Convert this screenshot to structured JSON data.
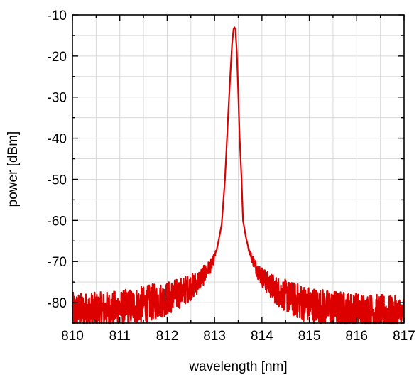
{
  "chart_data": {
    "type": "line",
    "xlabel": "wavelength [nm]",
    "ylabel": "power [dBm]",
    "xlim": [
      810,
      817
    ],
    "ylim": [
      -85,
      -10
    ],
    "xticks": [
      810,
      811,
      812,
      813,
      814,
      815,
      816,
      817
    ],
    "yticks": [
      -10,
      -20,
      -30,
      -40,
      -50,
      -60,
      -70,
      -80
    ],
    "xtick_labels": [
      "810",
      "811",
      "812",
      "813",
      "814",
      "815",
      "816",
      "817"
    ],
    "ytick_labels": [
      "-10",
      "-20",
      "-30",
      "-40",
      "-50",
      "-60",
      "-70",
      "-80"
    ],
    "grid": true,
    "series": [
      {
        "color": "#dd0000",
        "noisy": true,
        "x": [
          810.0,
          810.5,
          811.0,
          811.5,
          812.0,
          812.3,
          812.6,
          812.8,
          812.95,
          813.05,
          813.15,
          813.22,
          813.28,
          813.33,
          813.37,
          813.4,
          813.42,
          813.44,
          813.47,
          813.5,
          813.53,
          813.57,
          813.6,
          813.66,
          813.72,
          813.8,
          813.9,
          814.05,
          814.3,
          814.6,
          815.0,
          815.5,
          816.0,
          816.5,
          817.0
        ],
        "y": [
          -82,
          -82,
          -81.5,
          -80.5,
          -79,
          -77.5,
          -75.5,
          -73,
          -70.5,
          -67,
          -61,
          -50,
          -36,
          -25,
          -17,
          -13.5,
          -13,
          -13.5,
          -19,
          -29,
          -40,
          -50,
          -60,
          -64,
          -67,
          -69.5,
          -72,
          -74.5,
          -77,
          -79,
          -80.5,
          -81.5,
          -82,
          -82.5,
          -83
        ]
      }
    ]
  }
}
